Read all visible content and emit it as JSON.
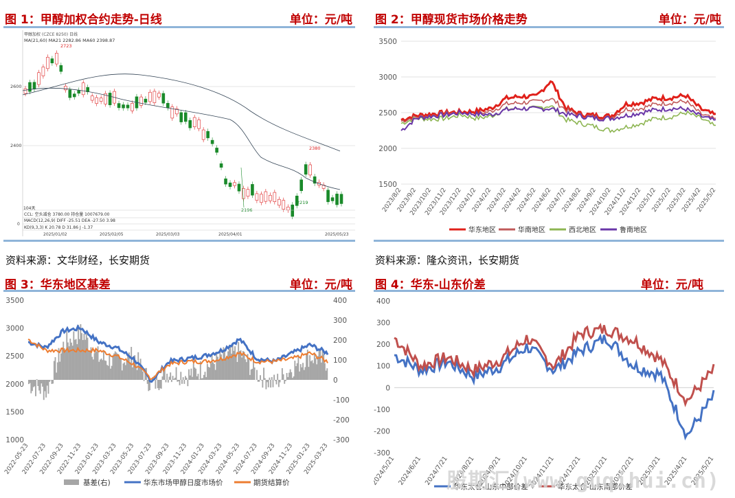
{
  "fig1": {
    "title": "图 1：甲醇加权合约走势-日线",
    "unit": "单位：元/吨",
    "source": "资料来源：文华财经，长安期货",
    "ticker": "甲醇加权 (CZCE 8250)  日线",
    "ma_text": "MA(21,60)   MA21 2282.86   MA60 2398.87",
    "ccl_text": "CCL: 空头减仓 3780.00   持仓量 1007679.00",
    "macd_text": "MACD(12,26,9)  DIFF -25.51  DEA -27.50  3.98",
    "kdj_text": "KD(9,3,3)  K 20.78  D 31.86  J -1.37",
    "vol_text": "104天",
    "yticks": [
      "2600",
      "2400",
      "0"
    ],
    "xticks": [
      "2025/01/02",
      "2025/02/05",
      "2025/03/03",
      "2025/04/01",
      "2025/05/23"
    ],
    "annotations": [
      "2723",
      "2380",
      "2196",
      "2219"
    ],
    "colors": {
      "up": "#d22",
      "down": "#1a8a2a",
      "ma": "#334"
    }
  },
  "fig2": {
    "title": "图 2：甲醇现货市场价格走势",
    "unit": "单位：元/吨",
    "chart_data": {
      "type": "line",
      "ylim": [
        1500,
        3500
      ],
      "yticks": [
        "3500",
        "3000",
        "2500",
        "2000",
        "1500"
      ],
      "x": [
        "2023/8/2",
        "2023/9/2",
        "2023/10/2",
        "2023/11/2",
        "2023/12/2",
        "2024/1/2",
        "2024/2/2",
        "2024/3/2",
        "2024/4/2",
        "2024/5/2",
        "2024/6/2",
        "2024/7/2",
        "2024/8/2",
        "2024/9/2",
        "2024/10/2",
        "2024/11/2",
        "2024/12/2",
        "2025/1/2",
        "2025/2/2",
        "2025/3/2",
        "2025/4/2",
        "2025/5/2"
      ],
      "series": [
        {
          "name": "华东地区",
          "color": "#e0201a",
          "values": [
            2400,
            2460,
            2480,
            2500,
            2510,
            2520,
            2560,
            2700,
            2730,
            2720,
            2950,
            2560,
            2480,
            2460,
            2450,
            2620,
            2640,
            2700,
            2710,
            2740,
            2550,
            2460
          ]
        },
        {
          "name": "华南地区",
          "color": "#c05a5a",
          "values": [
            2380,
            2440,
            2460,
            2490,
            2500,
            2480,
            2520,
            2620,
            2640,
            2650,
            2700,
            2540,
            2460,
            2440,
            2430,
            2550,
            2560,
            2620,
            2640,
            2660,
            2480,
            2400
          ]
        },
        {
          "name": "西北地区",
          "color": "#8db552",
          "values": [
            2350,
            2420,
            2410,
            2420,
            2470,
            2420,
            2450,
            2550,
            2560,
            2560,
            2600,
            2400,
            2350,
            2300,
            2250,
            2300,
            2350,
            2420,
            2440,
            2500,
            2420,
            2300
          ]
        },
        {
          "name": "鲁南地区",
          "color": "#6a36a8",
          "values": [
            2250,
            2420,
            2450,
            2470,
            2500,
            2480,
            2470,
            2540,
            2560,
            2550,
            2560,
            2480,
            2450,
            2420,
            2420,
            2460,
            2500,
            2540,
            2560,
            2550,
            2450,
            2380
          ]
        }
      ]
    }
  },
  "source2": "资料来源：隆众资讯，长安期货",
  "fig3": {
    "title": "图 3：华东地区基差",
    "unit": "单位：元/吨",
    "chart_data": {
      "type": "line",
      "ylim": [
        1000,
        3500
      ],
      "y2lim": [
        -300,
        400
      ],
      "yticks": [
        "3500",
        "3000",
        "2500",
        "2000",
        "1500",
        "1000"
      ],
      "y2ticks": [
        "400",
        "300",
        "200",
        "100",
        "0",
        "-100",
        "-200",
        "-300"
      ],
      "x": [
        "2022-05-23",
        "2022-07-23",
        "2022-09-23",
        "2022-11-23",
        "2023-01-23",
        "2023-03-23",
        "2023-05-23",
        "2023-07-23",
        "2023-09-23",
        "2023-11-23",
        "2024-01-23",
        "2024-03-23",
        "2024-05-23",
        "2024-07-23",
        "2024-09-23",
        "2024-11-23",
        "2025-01-23",
        "2025-03-23"
      ],
      "series": [
        {
          "name": "基差(右)",
          "color": "#a6a6a6",
          "axis": "right",
          "values": [
            -20,
            -60,
            180,
            240,
            110,
            90,
            120,
            -30,
            40,
            20,
            60,
            110,
            140,
            30,
            -20,
            60,
            120,
            90
          ]
        },
        {
          "name": "华东市场甲醇日度市场价",
          "color": "#4472c4",
          "values": [
            2750,
            2650,
            2950,
            3000,
            2750,
            2650,
            2450,
            2050,
            2400,
            2450,
            2500,
            2600,
            2800,
            2450,
            2400,
            2550,
            2700,
            2550
          ]
        },
        {
          "name": "期货结算价",
          "color": "#ed7d31",
          "values": [
            2800,
            2600,
            2600,
            2600,
            2600,
            2500,
            2350,
            2100,
            2350,
            2400,
            2400,
            2450,
            2550,
            2400,
            2400,
            2450,
            2550,
            2400
          ]
        }
      ]
    }
  },
  "fig4": {
    "title": "图 4：华东-山东价差",
    "unit": "单位：元/吨",
    "chart_data": {
      "type": "line",
      "ylim": [
        -300,
        400
      ],
      "yticks": [
        "400",
        "300",
        "200",
        "100",
        "0",
        "-100",
        "-200",
        "-300"
      ],
      "x": [
        "2024/5/21",
        "2024/6/21",
        "2024/7/21",
        "2024/8/21",
        "2024/9/21",
        "2024/10/21",
        "2024/11/21",
        "2024/12/21",
        "2025/1/21",
        "2025/2/21",
        "2025/3/21",
        "2025/4/21",
        "2025/5/21"
      ],
      "series": [
        {
          "name": "华东太仓-山东中部价差",
          "color": "#4472c4",
          "values": [
            150,
            80,
            120,
            50,
            100,
            190,
            80,
            170,
            230,
            100,
            60,
            -220,
            -40
          ]
        },
        {
          "name": "华东太仓-山东南部价差",
          "color": "#c0504d",
          "values": [
            230,
            100,
            140,
            80,
            130,
            230,
            100,
            250,
            270,
            220,
            130,
            -60,
            80
          ]
        }
      ]
    }
  },
  "watermark": "股期汇(www.guqihui.cn)"
}
